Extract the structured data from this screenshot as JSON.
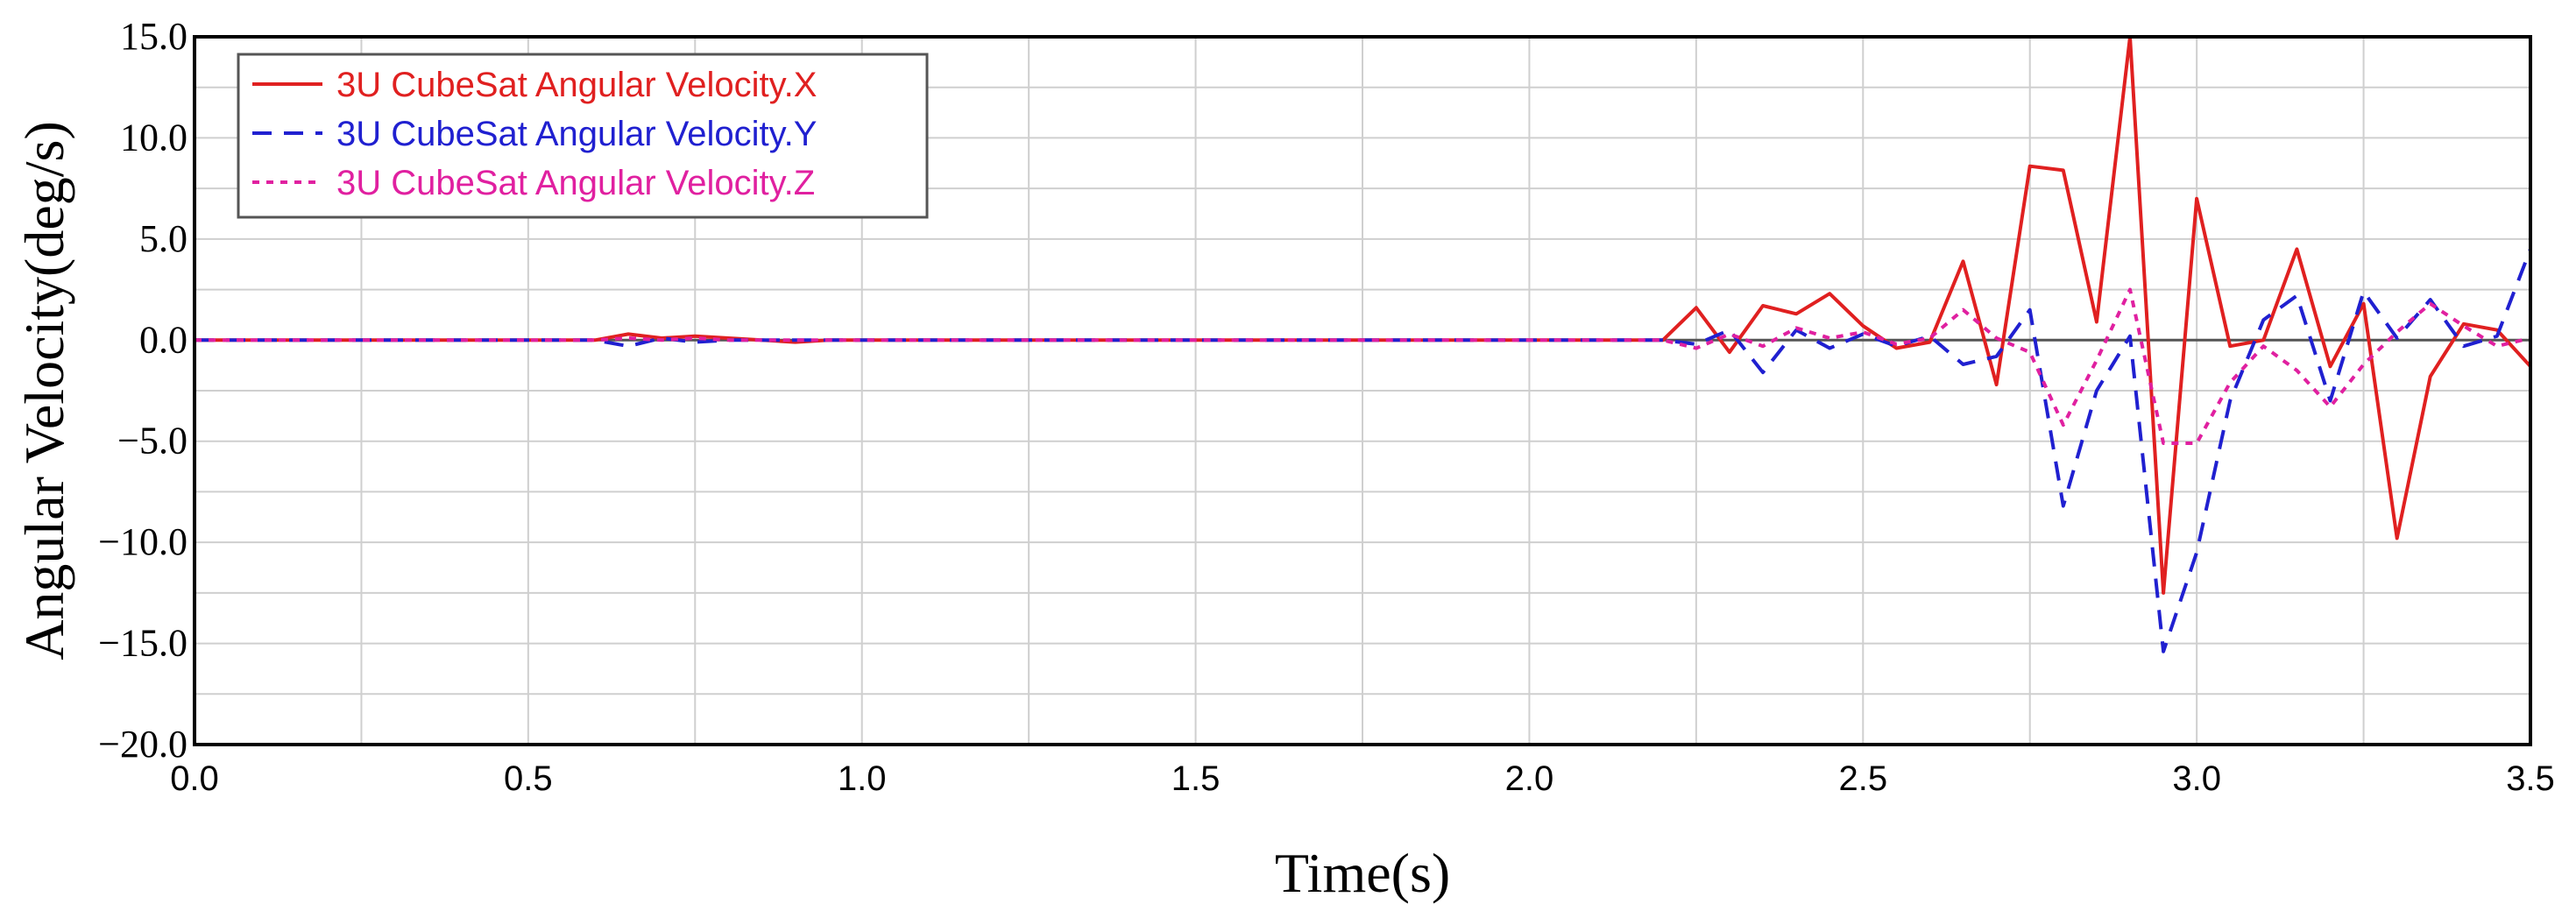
{
  "chart_data": {
    "type": "line",
    "title": "",
    "xlabel": "Time(s)",
    "ylabel": "Angular Velocity(deg/s)",
    "xlim": [
      0.0,
      3.5
    ],
    "ylim": [
      -20.0,
      15.0
    ],
    "x_ticks": [
      "0.0",
      "0.5",
      "1.0",
      "1.5",
      "2.0",
      "2.5",
      "3.0",
      "3.5"
    ],
    "y_ticks": [
      "15.0",
      "10.0",
      "5.0",
      "0.0",
      "−5.0",
      "−10.0",
      "−15.0",
      "−20.0"
    ],
    "grid": true,
    "legend_position": "top-left",
    "series": [
      {
        "name": "3U CubeSat Angular Velocity.X",
        "color": "#e02020",
        "style": "solid",
        "points": [
          [
            0.0,
            0
          ],
          [
            0.6,
            0
          ],
          [
            0.65,
            0.3
          ],
          [
            0.7,
            0.1
          ],
          [
            0.75,
            0.2
          ],
          [
            0.8,
            0.1
          ],
          [
            0.85,
            0
          ],
          [
            0.9,
            -0.1
          ],
          [
            0.95,
            0
          ],
          [
            2.2,
            0
          ],
          [
            2.25,
            1.6
          ],
          [
            2.3,
            -0.6
          ],
          [
            2.35,
            1.7
          ],
          [
            2.4,
            1.3
          ],
          [
            2.45,
            2.3
          ],
          [
            2.5,
            0.7
          ],
          [
            2.55,
            -0.4
          ],
          [
            2.6,
            -0.1
          ],
          [
            2.65,
            3.9
          ],
          [
            2.7,
            -2.2
          ],
          [
            2.75,
            8.6
          ],
          [
            2.8,
            8.4
          ],
          [
            2.85,
            0.9
          ],
          [
            2.9,
            15.0
          ],
          [
            2.95,
            -12.5
          ],
          [
            3.0,
            7.0
          ],
          [
            3.05,
            -0.3
          ],
          [
            3.1,
            0
          ],
          [
            3.15,
            4.5
          ],
          [
            3.2,
            -1.3
          ],
          [
            3.25,
            1.8
          ],
          [
            3.3,
            -9.8
          ],
          [
            3.35,
            -1.8
          ],
          [
            3.4,
            0.8
          ],
          [
            3.45,
            0.5
          ],
          [
            3.5,
            -1.3
          ]
        ]
      },
      {
        "name": "3U CubeSat Angular Velocity.Y",
        "color": "#2020d0",
        "style": "dashed",
        "points": [
          [
            0.0,
            0
          ],
          [
            0.6,
            0
          ],
          [
            0.65,
            -0.3
          ],
          [
            0.7,
            0.1
          ],
          [
            0.75,
            -0.1
          ],
          [
            0.8,
            0
          ],
          [
            0.9,
            0
          ],
          [
            2.2,
            0
          ],
          [
            2.25,
            -0.2
          ],
          [
            2.3,
            0.5
          ],
          [
            2.35,
            -1.6
          ],
          [
            2.4,
            0.5
          ],
          [
            2.45,
            -0.4
          ],
          [
            2.5,
            0.3
          ],
          [
            2.55,
            -0.3
          ],
          [
            2.6,
            0.2
          ],
          [
            2.65,
            -1.2
          ],
          [
            2.7,
            -0.8
          ],
          [
            2.75,
            1.5
          ],
          [
            2.8,
            -8.2
          ],
          [
            2.85,
            -2.5
          ],
          [
            2.9,
            0.2
          ],
          [
            2.95,
            -15.4
          ],
          [
            3.0,
            -10.5
          ],
          [
            3.05,
            -3.0
          ],
          [
            3.1,
            1.0
          ],
          [
            3.15,
            2.2
          ],
          [
            3.2,
            -3.0
          ],
          [
            3.25,
            2.4
          ],
          [
            3.3,
            0.1
          ],
          [
            3.35,
            2.0
          ],
          [
            3.4,
            -0.3
          ],
          [
            3.45,
            0.2
          ],
          [
            3.5,
            4.5
          ]
        ]
      },
      {
        "name": "3U CubeSat Angular Velocity.Z",
        "color": "#e020a0",
        "style": "dotted",
        "points": [
          [
            0.0,
            0
          ],
          [
            0.6,
            0
          ],
          [
            0.65,
            0.1
          ],
          [
            0.7,
            0
          ],
          [
            0.75,
            0.1
          ],
          [
            0.8,
            0
          ],
          [
            2.2,
            0
          ],
          [
            2.25,
            -0.4
          ],
          [
            2.3,
            0.3
          ],
          [
            2.35,
            -0.3
          ],
          [
            2.4,
            0.6
          ],
          [
            2.45,
            0.1
          ],
          [
            2.5,
            0.4
          ],
          [
            2.55,
            -0.2
          ],
          [
            2.6,
            0.1
          ],
          [
            2.65,
            1.5
          ],
          [
            2.7,
            0.1
          ],
          [
            2.75,
            -0.6
          ],
          [
            2.8,
            -4.2
          ],
          [
            2.85,
            -1.0
          ],
          [
            2.9,
            2.5
          ],
          [
            2.95,
            -5.1
          ],
          [
            3.0,
            -5.1
          ],
          [
            3.05,
            -2.1
          ],
          [
            3.1,
            -0.3
          ],
          [
            3.15,
            -1.5
          ],
          [
            3.2,
            -3.3
          ],
          [
            3.25,
            -1.2
          ],
          [
            3.3,
            0.4
          ],
          [
            3.35,
            1.8
          ],
          [
            3.4,
            0.7
          ],
          [
            3.45,
            -0.3
          ],
          [
            3.5,
            0.1
          ]
        ]
      }
    ]
  }
}
